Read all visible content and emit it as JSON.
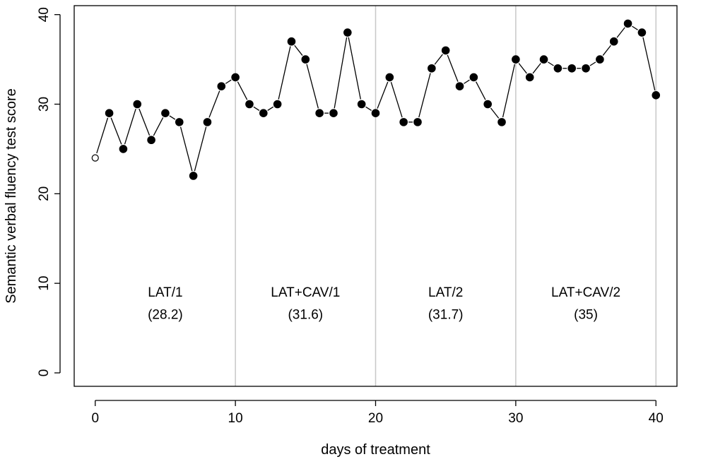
{
  "chart_data": {
    "type": "line",
    "title": "",
    "xlabel": "days of treatment",
    "ylabel": "Semantic verbal fluency test score",
    "xlim": [
      -1.5,
      41.5
    ],
    "ylim": [
      -1.5,
      41
    ],
    "xticks": [
      0,
      10,
      20,
      30,
      40
    ],
    "yticks": [
      0,
      10,
      20,
      30,
      40
    ],
    "grid": false,
    "series": [
      {
        "name": "Semantic verbal fluency test score",
        "x": [
          0,
          1,
          2,
          3,
          4,
          5,
          6,
          7,
          8,
          9,
          10,
          11,
          12,
          13,
          14,
          15,
          16,
          17,
          18,
          19,
          20,
          21,
          22,
          23,
          24,
          25,
          26,
          27,
          28,
          29,
          30,
          31,
          32,
          33,
          34,
          35,
          36,
          37,
          38,
          39,
          40
        ],
        "values": [
          24,
          29,
          25,
          30,
          26,
          29,
          28,
          22,
          28,
          32,
          33,
          30,
          29,
          30,
          37,
          35,
          29,
          29,
          38,
          30,
          29,
          33,
          28,
          28,
          34,
          36,
          32,
          33,
          30,
          28,
          35,
          33,
          35,
          34,
          34,
          34,
          35,
          37,
          39,
          38,
          31
        ],
        "baseline_x": 0
      }
    ],
    "phase_dividers": [
      10,
      20,
      30,
      40
    ],
    "phases": [
      {
        "name": "LAT/1",
        "mean": "(28.2)",
        "center_x": 5
      },
      {
        "name": "LAT+CAV/1",
        "mean": "(31.6)",
        "center_x": 15
      },
      {
        "name": "LAT/2",
        "mean": "(31.7)",
        "center_x": 25
      },
      {
        "name": "LAT+CAV/2",
        "mean": "(35)",
        "center_x": 35
      }
    ],
    "phase_label_y": [
      9,
      6.5
    ],
    "colors": {
      "line": "#000000",
      "marker": "#000000",
      "divider": "#c8c8c8",
      "axis": "#000000"
    }
  }
}
